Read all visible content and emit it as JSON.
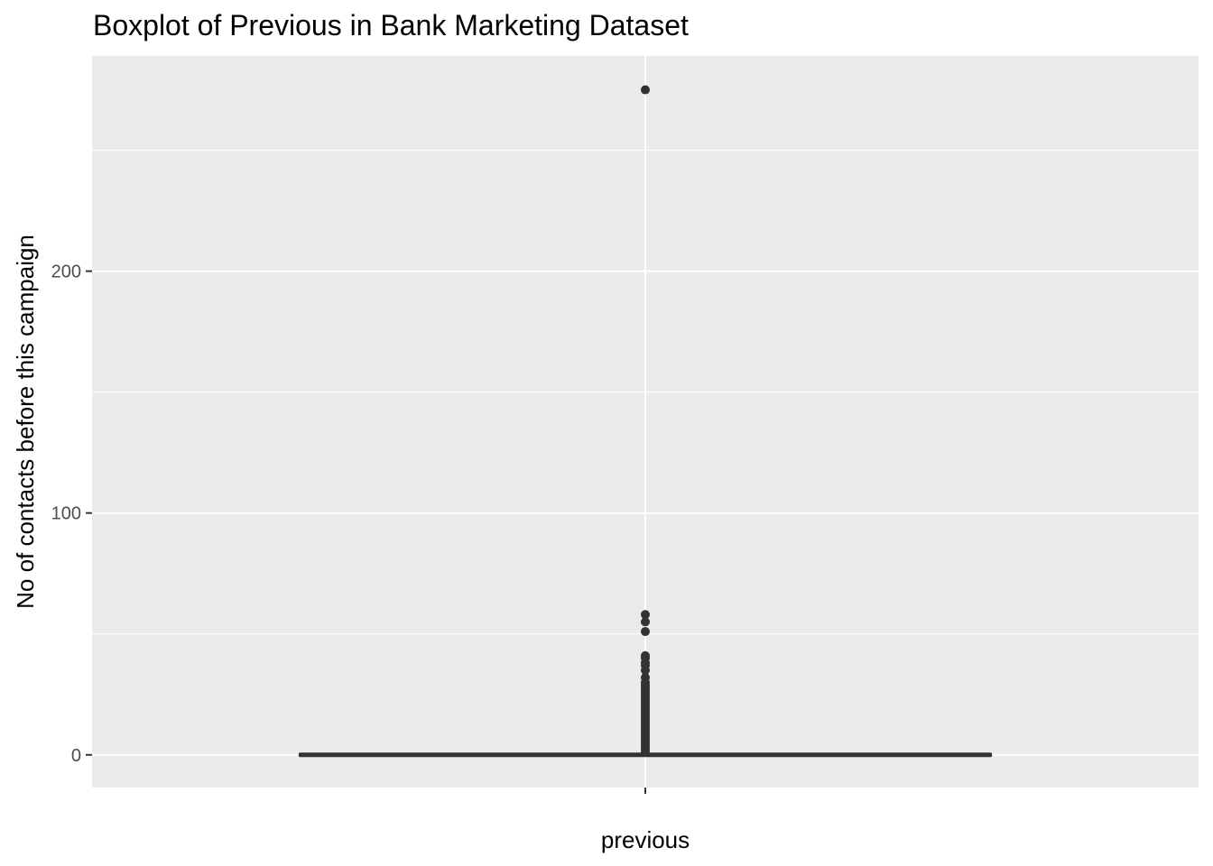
{
  "chart_data": {
    "type": "boxplot",
    "title": "Boxplot of Previous in Bank Marketing Dataset",
    "xlabel": "previous",
    "ylabel": "No of contacts before this campaign",
    "categories": [
      "previous"
    ],
    "ylim": [
      -13.5,
      289
    ],
    "yticks": [
      0,
      100,
      200
    ],
    "grid": true,
    "panel_background": "#ebebeb",
    "grid_color": "#ffffff",
    "mark_color": "#333333",
    "box": {
      "min": 0,
      "q1": 0,
      "median": 0,
      "q3": 0,
      "max": 0
    },
    "outliers": [
      275,
      58,
      55,
      51,
      41,
      40,
      38,
      37,
      35,
      32,
      30,
      29,
      28,
      27,
      26,
      25,
      24,
      23,
      22,
      21,
      20,
      19,
      18,
      17,
      16,
      15,
      14,
      13,
      12,
      11,
      10,
      9,
      8,
      7,
      6,
      5,
      4,
      3,
      2,
      1
    ]
  }
}
